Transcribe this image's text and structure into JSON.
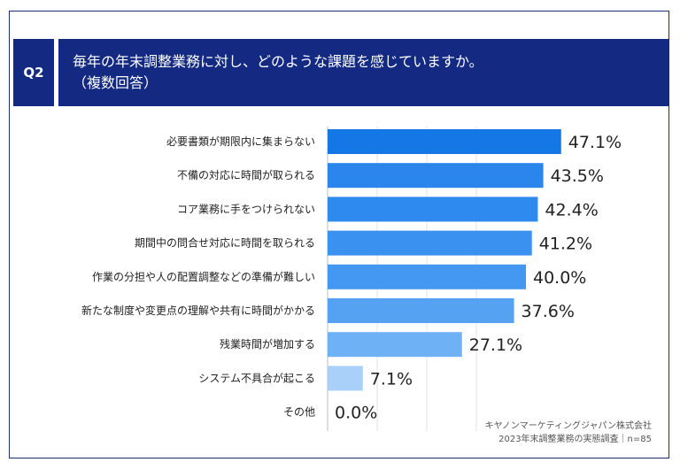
{
  "question": {
    "number": "Q2",
    "title_line1": "毎年の年末調整業務に対し、どのような課題を感じていますか。",
    "title_line2": "（複数回答）"
  },
  "chart_data": {
    "type": "bar",
    "orientation": "horizontal",
    "categories": [
      "必要書類が期限内に集まらない",
      "不備の対応に時間が取られる",
      "コア業務に手をつけられない",
      "期間中の問合せ対応に時間を取られる",
      "作業の分担や人の配置調整などの準備が難しい",
      "新たな制度や変更点の理解や共有に時間がかかる",
      "残業時間が増加する",
      "システム不具合が起こる",
      "その他"
    ],
    "values": [
      47.1,
      43.5,
      42.4,
      41.2,
      40.0,
      37.6,
      27.1,
      7.1,
      0.0
    ],
    "value_labels": [
      "47.1%",
      "43.5%",
      "42.4%",
      "41.2%",
      "40.0%",
      "37.6%",
      "27.1%",
      "7.1%",
      "0.0%"
    ],
    "unit": "%",
    "xlim": [
      0,
      100
    ],
    "grid": true,
    "bar_colors": [
      "#1577e6",
      "#2a86ec",
      "#2f8af0",
      "#3a91f0",
      "#4598f1",
      "#55a1f2",
      "#6fb1f5",
      "#a8d0f9",
      "#c8e0fa"
    ]
  },
  "source": {
    "line1": "キヤノンマーケティングジャパン株式会社",
    "line2": "2023年末調整業務の実態調査｜n=85"
  }
}
